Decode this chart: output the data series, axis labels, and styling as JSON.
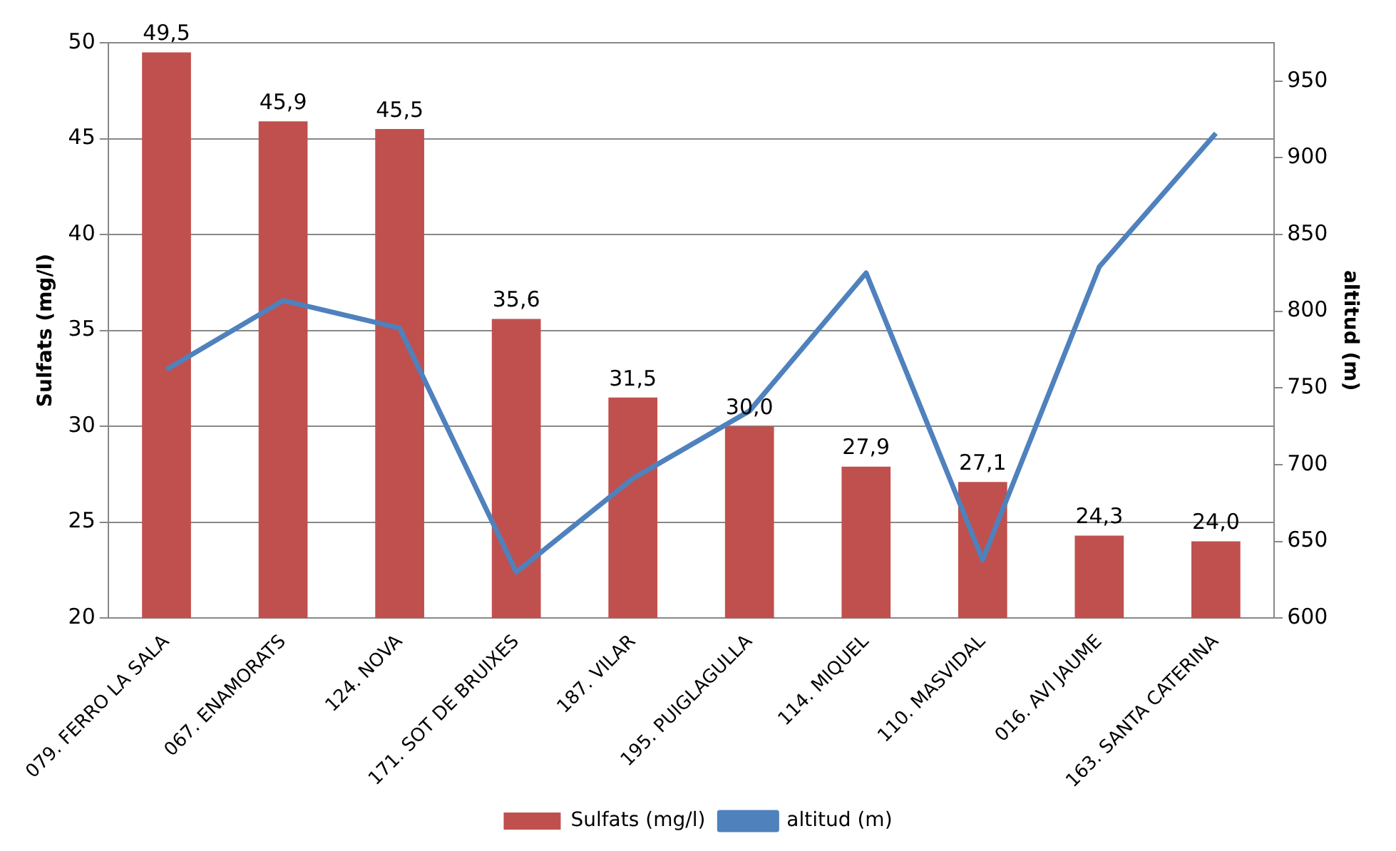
{
  "chart_data": {
    "type": "bar",
    "ylabel": "Sulfats (mg/l)",
    "y2label": "altitud (m)",
    "categories": [
      "079. FERRO LA SALA",
      "067. ENAMORATS",
      "124. NOVA",
      "171. SOT DE BRUIXES",
      "187. VILAR",
      "195. PUIGLAGULLA",
      "114. MIQUEL",
      "110. MASVIDAL",
      "016. AVI JAUME",
      "163. SANTA CATERINA"
    ],
    "series": [
      {
        "name": "Sulfats (mg/l)",
        "color": "#c0504d",
        "values": [
          49.5,
          45.9,
          45.5,
          35.6,
          31.5,
          30.0,
          27.9,
          27.1,
          24.3,
          24.0
        ],
        "value_labels": [
          "49,5",
          "45,9",
          "45,5",
          "35,6",
          "31,5",
          "30,0",
          "27,9",
          "27,1",
          "24,3",
          "24,0"
        ]
      },
      {
        "name": "altitud (m)",
        "type": "line",
        "axis": "y2",
        "color": "#4f81bd",
        "values": [
          762,
          807,
          789,
          630,
          691,
          735,
          825,
          638,
          829,
          916
        ]
      }
    ],
    "ylim": [
      20,
      50
    ],
    "yticks": [
      20,
      25,
      30,
      35,
      40,
      45,
      50
    ],
    "y2lim": [
      600,
      975
    ],
    "y2ticks": [
      600,
      650,
      700,
      750,
      800,
      850,
      900,
      950
    ],
    "grid": "y",
    "legend": "bottom",
    "marker": "none"
  }
}
